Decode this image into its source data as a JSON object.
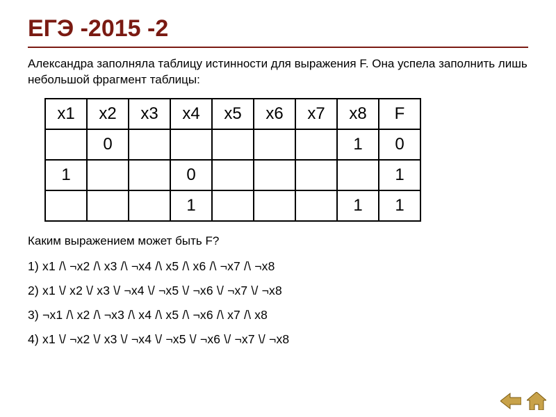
{
  "colors": {
    "title": "#7a1a12",
    "rule": "#7a1a12",
    "text": "#000000",
    "nav_fill": "#c8a24a",
    "nav_stroke": "#7a5a10",
    "background": "#ffffff"
  },
  "title": "ЕГЭ -2015 -2",
  "intro": "Александра заполняла таблицу истинности для выражения F. Она успела заполнить лишь небольшой фрагмент таблицы:",
  "table": {
    "headers": [
      "x1",
      "x2",
      "x3",
      "x4",
      "x5",
      "x6",
      "x7",
      "x8",
      "F"
    ],
    "rows": [
      [
        "",
        "0",
        "",
        "",
        "",
        "",
        "",
        "1",
        "0"
      ],
      [
        "1",
        "",
        "",
        "0",
        "",
        "",
        "",
        "",
        "1"
      ],
      [
        "",
        "",
        "",
        "1",
        "",
        "",
        "",
        "1",
        "1"
      ]
    ]
  },
  "question": "Каким выражением может быть F?",
  "options": [
    "1) x1 /\\ ¬x2 /\\ x3 /\\ ¬x4 /\\ x5 /\\ x6 /\\ ¬x7 /\\ ¬x8",
    "2) x1 \\/ x2 \\/ x3 \\/ ¬x4 \\/ ¬x5 \\/ ¬x6 \\/ ¬x7 \\/ ¬x8",
    "3) ¬x1 /\\ x2 /\\ ¬x3 /\\ x4 /\\ x5 /\\ ¬x6 /\\ x7 /\\ x8",
    "4) x1 \\/ ¬x2 \\/ x3 \\/ ¬x4 \\/ ¬x5 \\/ ¬x6 \\/ ¬x7 \\/ ¬x8"
  ],
  "nav": {
    "back_label": "back",
    "home_label": "home"
  }
}
